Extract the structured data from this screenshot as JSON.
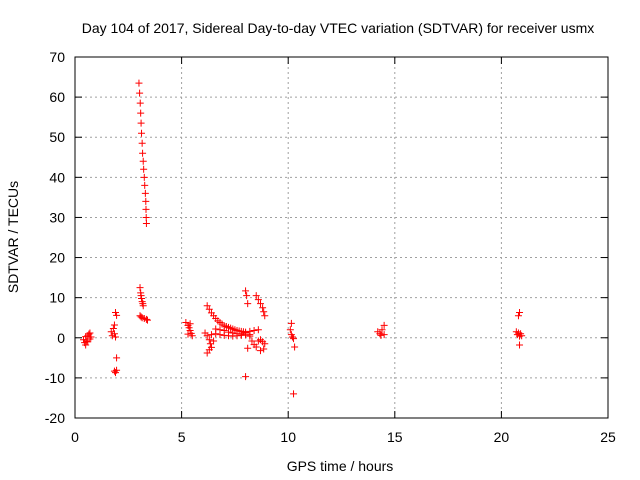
{
  "chart_data": {
    "type": "scatter",
    "title": "Day 104 of 2017, Sidereal Day-to-day VTEC variation (SDTVAR) for receiver usmx",
    "xlabel": "GPS time / hours",
    "ylabel": "SDTVAR / TECUs",
    "xlim": [
      0,
      25
    ],
    "ylim": [
      -20,
      70
    ],
    "xticks": [
      0,
      5,
      10,
      15,
      20,
      25
    ],
    "yticks": [
      -20,
      -10,
      0,
      10,
      20,
      30,
      40,
      50,
      60,
      70
    ],
    "grid": true,
    "marker": "plus",
    "color": "#ff0000",
    "series": [
      {
        "name": "SDTVAR",
        "points": [
          [
            0.4,
            -0.5
          ],
          [
            0.45,
            -1.2
          ],
          [
            0.5,
            -1.8
          ],
          [
            0.5,
            0.3
          ],
          [
            0.55,
            -0.8
          ],
          [
            0.6,
            0.5
          ],
          [
            0.6,
            -1
          ],
          [
            0.65,
            0.9
          ],
          [
            0.7,
            1.2
          ],
          [
            0.75,
            0.2
          ],
          [
            0.7,
            -0.3
          ],
          [
            1.7,
            1.5
          ],
          [
            1.75,
            0.5
          ],
          [
            1.8,
            2.3
          ],
          [
            1.85,
            1
          ],
          [
            1.9,
            0.2
          ],
          [
            1.85,
            3.2
          ],
          [
            1.9,
            6.3
          ],
          [
            1.95,
            5.6
          ],
          [
            1.95,
            -5
          ],
          [
            1.85,
            -8.3
          ],
          [
            1.9,
            -8.7
          ],
          [
            1.95,
            -8.1
          ],
          [
            3.0,
            63.5
          ],
          [
            3.03,
            61
          ],
          [
            3.06,
            58.5
          ],
          [
            3.08,
            56
          ],
          [
            3.1,
            53.5
          ],
          [
            3.12,
            51
          ],
          [
            3.15,
            48.5
          ],
          [
            3.17,
            46
          ],
          [
            3.2,
            44
          ],
          [
            3.22,
            42
          ],
          [
            3.25,
            40
          ],
          [
            3.27,
            38
          ],
          [
            3.3,
            36
          ],
          [
            3.32,
            34
          ],
          [
            3.33,
            32
          ],
          [
            3.34,
            30
          ],
          [
            3.35,
            28.5
          ],
          [
            3.05,
            12.5
          ],
          [
            3.08,
            11.2
          ],
          [
            3.1,
            10.5
          ],
          [
            3.12,
            9.8
          ],
          [
            3.15,
            9.0
          ],
          [
            3.18,
            8.5
          ],
          [
            3.2,
            8.0
          ],
          [
            3.05,
            5.5
          ],
          [
            3.1,
            5.2
          ],
          [
            3.15,
            5.0
          ],
          [
            3.25,
            4.8
          ],
          [
            3.35,
            4.6
          ],
          [
            3.4,
            4.4
          ],
          [
            5.2,
            3.8
          ],
          [
            5.3,
            3.1
          ],
          [
            5.35,
            2.5
          ],
          [
            5.4,
            1.8
          ],
          [
            5.45,
            1.1
          ],
          [
            5.5,
            0.5
          ],
          [
            5.3,
            0.9
          ],
          [
            5.4,
            3.5
          ],
          [
            6.2,
            8.0
          ],
          [
            6.3,
            7.1
          ],
          [
            6.4,
            6.2
          ],
          [
            6.5,
            5.5
          ],
          [
            6.6,
            4.8
          ],
          [
            6.7,
            4.2
          ],
          [
            6.8,
            3.8
          ],
          [
            6.9,
            3.4
          ],
          [
            7.0,
            3.0
          ],
          [
            7.1,
            2.8
          ],
          [
            7.2,
            2.6
          ],
          [
            7.3,
            2.4
          ],
          [
            7.4,
            2.2
          ],
          [
            7.5,
            2.0
          ],
          [
            7.6,
            1.8
          ],
          [
            7.7,
            1.7
          ],
          [
            7.8,
            1.6
          ],
          [
            7.9,
            1.5
          ],
          [
            8.0,
            1.4
          ],
          [
            6.2,
            0.5
          ],
          [
            6.4,
            0.8
          ],
          [
            6.6,
            1.0
          ],
          [
            6.8,
            0.8
          ],
          [
            7.0,
            0.6
          ],
          [
            7.2,
            0.5
          ],
          [
            7.4,
            0.4
          ],
          [
            7.6,
            0.5
          ],
          [
            7.8,
            0.6
          ],
          [
            8.0,
            0.7
          ],
          [
            8.2,
            0.8
          ],
          [
            6.1,
            1.2
          ],
          [
            6.3,
            -0.5
          ],
          [
            6.35,
            -1.5
          ],
          [
            6.4,
            -2.4
          ],
          [
            6.3,
            -3.0
          ],
          [
            6.2,
            -3.8
          ],
          [
            6.5,
            -0.8
          ],
          [
            6.6,
            2.2
          ],
          [
            6.8,
            2.0
          ],
          [
            7.0,
            1.8
          ],
          [
            7.2,
            1.4
          ],
          [
            7.4,
            1.2
          ],
          [
            7.6,
            1.0
          ],
          [
            7.8,
            0.9
          ],
          [
            8.0,
            1.2
          ],
          [
            8.2,
            1.6
          ],
          [
            8.4,
            1.8
          ],
          [
            8.6,
            2.0
          ],
          [
            8.0,
            11.7
          ],
          [
            8.05,
            10.5
          ],
          [
            8.1,
            8.5
          ],
          [
            8.1,
            -2.6
          ],
          [
            8.0,
            -9.7
          ],
          [
            8.2,
            0.4
          ],
          [
            8.3,
            -0.8
          ],
          [
            8.4,
            -1.7
          ],
          [
            8.5,
            -2.3
          ],
          [
            8.5,
            10.5
          ],
          [
            8.6,
            9.5
          ],
          [
            8.7,
            8.5
          ],
          [
            8.8,
            7.5
          ],
          [
            8.85,
            6.5
          ],
          [
            8.9,
            5.5
          ],
          [
            8.6,
            -0.8
          ],
          [
            8.7,
            -0.5
          ],
          [
            8.8,
            -1.0
          ],
          [
            8.9,
            -1.5
          ],
          [
            8.7,
            -3.2
          ],
          [
            8.85,
            -2.8
          ],
          [
            10.15,
            3.6
          ],
          [
            10.1,
            2.0
          ],
          [
            10.15,
            0.8
          ],
          [
            10.2,
            0.2
          ],
          [
            10.25,
            -0.2
          ],
          [
            10.3,
            -2.3
          ],
          [
            10.25,
            -14
          ],
          [
            14.2,
            1.5
          ],
          [
            14.3,
            1.0
          ],
          [
            14.35,
            0.6
          ],
          [
            14.4,
            2.0
          ],
          [
            14.5,
            3.1
          ],
          [
            14.5,
            0.8
          ],
          [
            20.7,
            1.5
          ],
          [
            20.75,
            0.8
          ],
          [
            20.8,
            1.2
          ],
          [
            20.85,
            0.4
          ],
          [
            20.9,
            1.0
          ],
          [
            20.95,
            0.5
          ],
          [
            20.8,
            5.5
          ],
          [
            20.85,
            6.3
          ],
          [
            20.85,
            -1.8
          ]
        ]
      }
    ]
  }
}
